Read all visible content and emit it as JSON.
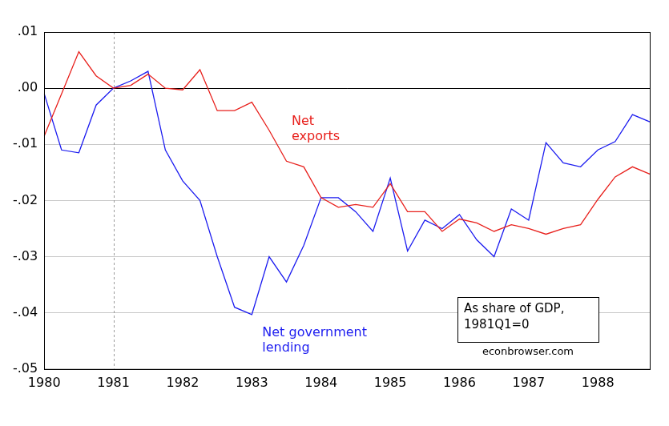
{
  "chart_data": {
    "type": "line",
    "categories": [
      "1980",
      null,
      null,
      null,
      "1981",
      null,
      null,
      null,
      "1982",
      null,
      null,
      null,
      "1983",
      null,
      null,
      null,
      "1984",
      null,
      null,
      null,
      "1985",
      null,
      null,
      null,
      "1986",
      null,
      null,
      null,
      "1987",
      null,
      null,
      null,
      "1988",
      null,
      null,
      null
    ],
    "series": [
      {
        "name": "Net exports",
        "color": "#e8201c",
        "marker": "none",
        "line_style": "solid",
        "values": [
          -0.0085,
          -0.001,
          0.0065,
          0.0022,
          0.0,
          0.0005,
          0.0025,
          0.0,
          -0.0003,
          0.0033,
          -0.004,
          -0.004,
          -0.0025,
          -0.0075,
          -0.013,
          -0.014,
          -0.0195,
          -0.0212,
          -0.0207,
          -0.0212,
          -0.017,
          -0.022,
          -0.022,
          -0.0255,
          -0.0233,
          -0.024,
          -0.0255,
          -0.0243,
          -0.025,
          -0.026,
          -0.025,
          -0.0243,
          -0.0198,
          -0.0158,
          -0.014,
          -0.0153
        ]
      },
      {
        "name": "Net government lending",
        "color": "#1c1cf0",
        "marker": "none",
        "line_style": "solid",
        "values": [
          -0.001,
          -0.011,
          -0.0115,
          -0.003,
          0.0,
          0.0013,
          0.003,
          -0.011,
          -0.0165,
          -0.02,
          -0.03,
          -0.039,
          -0.0403,
          -0.03,
          -0.0345,
          -0.028,
          -0.0195,
          -0.0195,
          -0.022,
          -0.0255,
          -0.016,
          -0.029,
          -0.0235,
          -0.025,
          -0.0225,
          -0.027,
          -0.03,
          -0.0215,
          -0.0235,
          -0.0097,
          -0.0133,
          -0.014,
          -0.011,
          -0.0095,
          -0.0047,
          -0.006
        ]
      }
    ],
    "ylim": [
      -0.05,
      0.01
    ],
    "yticks": [
      {
        "value": 0.01,
        "label": ".01"
      },
      {
        "value": 0.0,
        "label": ".00"
      },
      {
        "value": -0.01,
        "label": "-.01"
      },
      {
        "value": -0.02,
        "label": "-.02"
      },
      {
        "value": -0.03,
        "label": "-.03"
      },
      {
        "value": -0.04,
        "label": "-.04"
      },
      {
        "value": -0.05,
        "label": "-.05"
      }
    ],
    "grid": "y",
    "reference_lines": {
      "x": "1981",
      "y": 0
    },
    "annotations": [
      {
        "text": [
          "As share of GDP,",
          "1981Q1=0"
        ]
      },
      {
        "text": [
          "econbrowser.com"
        ]
      }
    ]
  }
}
